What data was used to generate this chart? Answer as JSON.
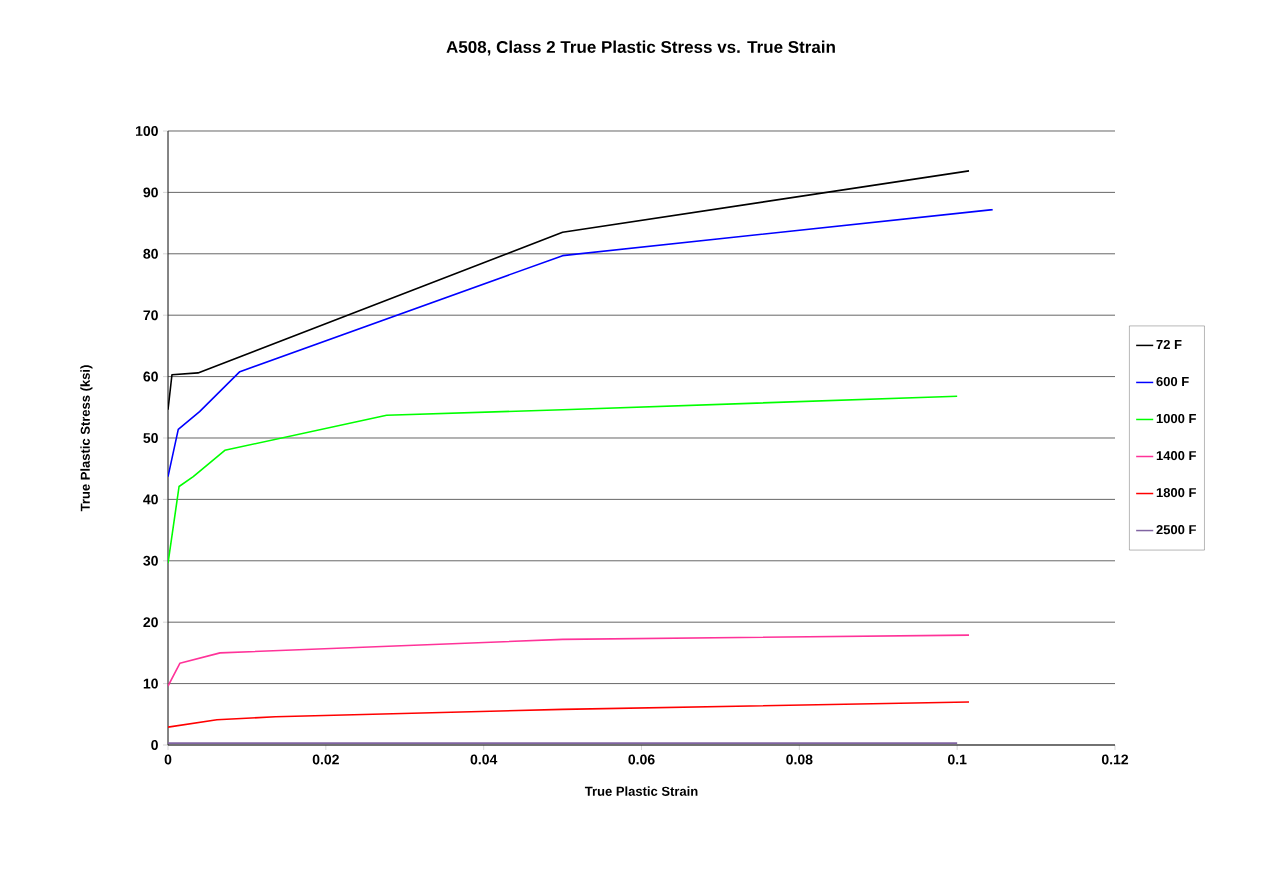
{
  "chart_data": {
    "type": "line",
    "title": "A508, Class 2 True Plastic Stress vs. True Strain",
    "xlabel": "True Plastic Strain",
    "ylabel": "True Plastic Stress (ksi)",
    "xlim": [
      0,
      0.12
    ],
    "xticks": [
      0,
      0.02,
      0.04,
      0.06,
      0.08,
      0.1,
      0.12
    ],
    "ylim": [
      0,
      100
    ],
    "yticks": [
      0,
      10,
      20,
      30,
      40,
      50,
      60,
      70,
      80,
      90,
      100
    ],
    "grid": "y",
    "legend": "right",
    "marker": "none",
    "line_style": "solid",
    "series": [
      {
        "name": "72 F",
        "color": "#000000",
        "x": [
          0,
          0.0005,
          0.0038,
          0.05,
          0.1015
        ],
        "values": [
          54.6,
          60.3,
          60.6,
          83.5,
          93.5
        ]
      },
      {
        "name": "600 F",
        "color": "#0000ff",
        "x": [
          0,
          0.0013,
          0.004,
          0.0091,
          0.05,
          0.1045
        ],
        "values": [
          43.7,
          51.4,
          54.3,
          60.8,
          79.7,
          87.2
        ]
      },
      {
        "name": "1000 F",
        "color": "#00ff00",
        "x": [
          0,
          0.0014,
          0.0032,
          0.0072,
          0.0277,
          0.05,
          0.1
        ],
        "values": [
          29.6,
          42.1,
          43.7,
          48.0,
          53.7,
          54.6,
          56.8
        ]
      },
      {
        "name": "1400 F",
        "color": "#ff3399",
        "x": [
          0,
          0.0015,
          0.0066,
          0.05,
          0.1015
        ],
        "values": [
          9.6,
          13.3,
          15.0,
          17.2,
          17.9
        ]
      },
      {
        "name": "1800 F",
        "color": "#ff0000",
        "x": [
          0,
          0.0062,
          0.0136,
          0.05,
          0.1015
        ],
        "values": [
          2.9,
          4.1,
          4.6,
          5.8,
          7.0
        ]
      },
      {
        "name": "2500 F",
        "color": "#8064a2",
        "x": [
          0,
          0.1
        ],
        "values": [
          0.3,
          0.3
        ]
      }
    ]
  }
}
